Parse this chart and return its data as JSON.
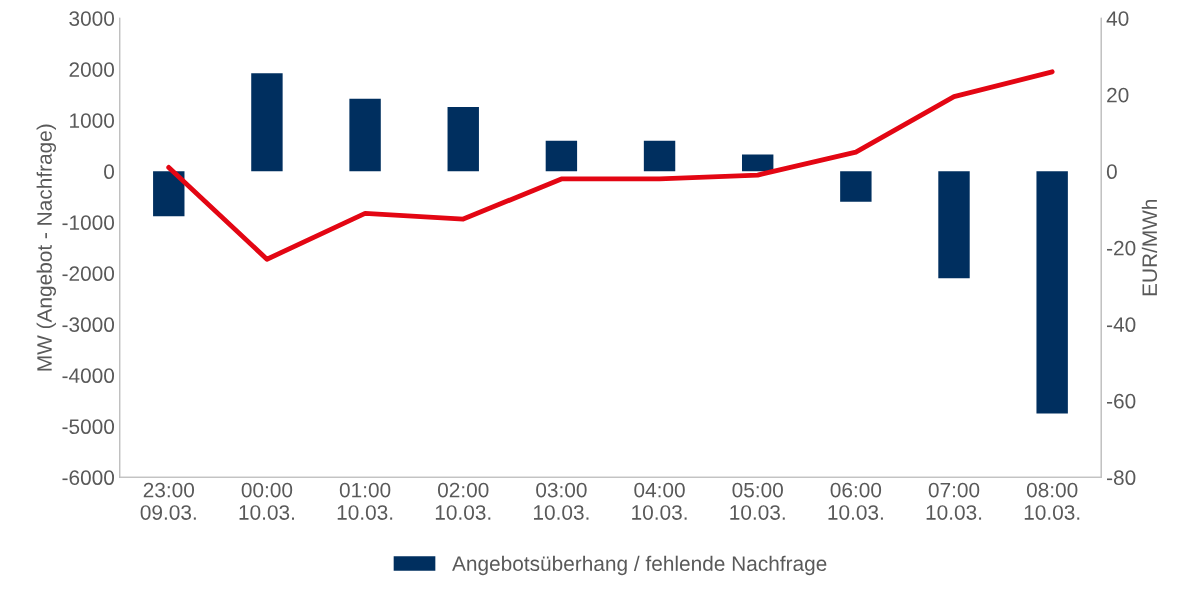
{
  "chart_data": {
    "type": "bar",
    "categories": [
      "23:00\n09.03.",
      "00:00\n10.03.",
      "01:00\n10.03.",
      "02:00\n10.03.",
      "03:00\n10.03.",
      "04:00\n10.03.",
      "05:00\n10.03.",
      "06:00\n10.03.",
      "07:00\n10.03.",
      "08:00\n10.03."
    ],
    "ylabel": "MW (Angebot - Nachfrage)",
    "y2label": "EUR/MWh",
    "series": [
      {
        "name": "Angebotsüberhang / fehlende Nachfrage",
        "color": "#002f5f",
        "values": [
          -880,
          1920,
          1420,
          1260,
          600,
          600,
          330,
          -600,
          -2100,
          -4750
        ]
      },
      {
        "type": "line",
        "axis": "y2",
        "color": "#e30613",
        "values": [
          1,
          -23,
          -11,
          -12.5,
          -2,
          -2,
          -1,
          5,
          19.5,
          26
        ]
      }
    ],
    "ylim": [
      -6000,
      3000
    ],
    "yticks": [
      -6000,
      -5000,
      -4000,
      -3000,
      -2000,
      -1000,
      0,
      1000,
      2000,
      3000
    ],
    "y2lim": [
      -80,
      40
    ],
    "y2ticks": [
      -80,
      -60,
      -40,
      -20,
      0,
      20,
      40
    ],
    "grid": false,
    "legend": "bottom"
  }
}
